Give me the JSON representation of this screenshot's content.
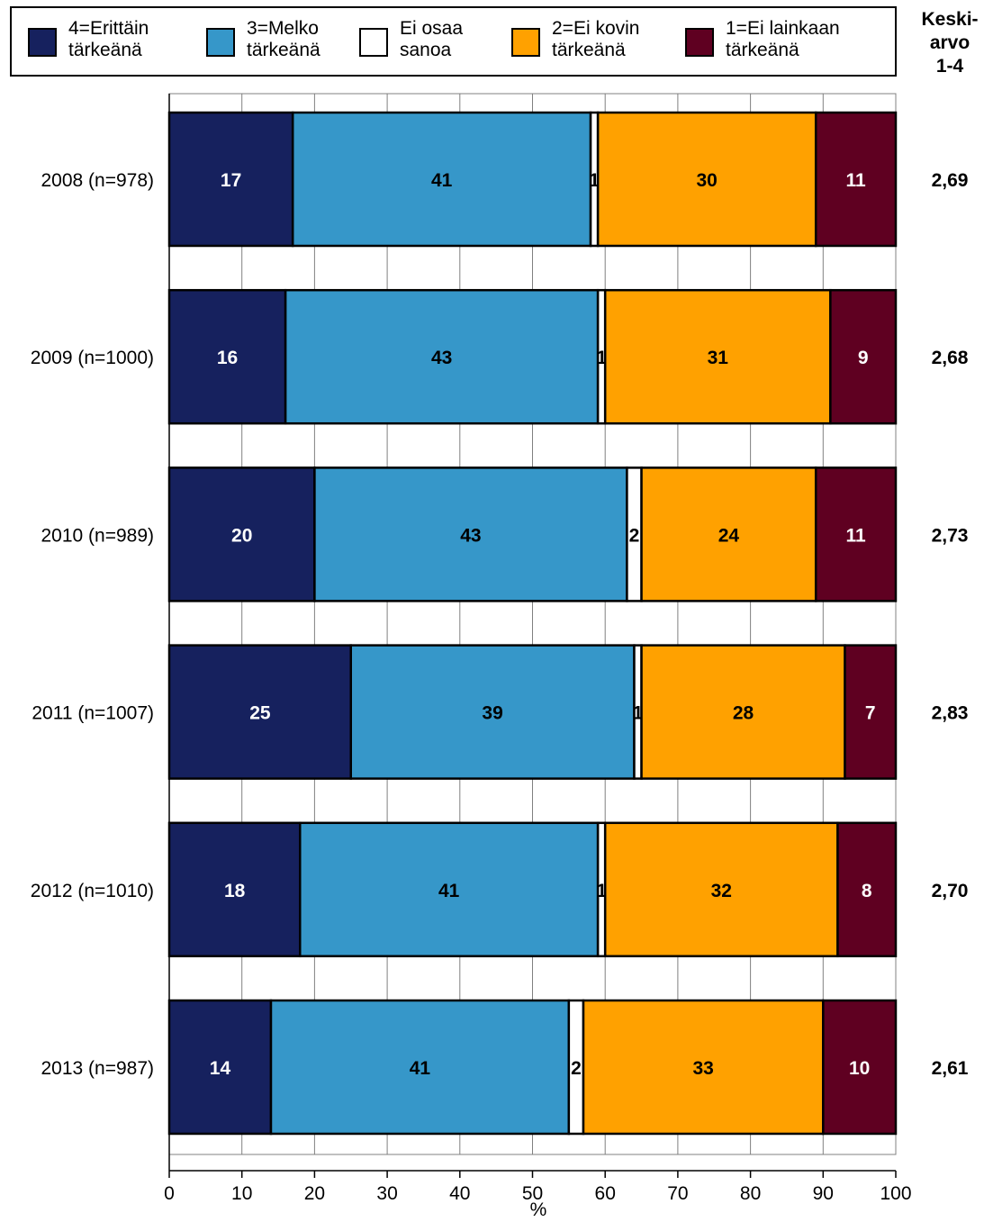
{
  "chart_data": {
    "type": "bar",
    "orientation": "horizontal",
    "stacked": true,
    "categories": [
      "2008 (n=978)",
      "2009 (n=1000)",
      "2010 (n=989)",
      "2011 (n=1007)",
      "2012 (n=1010)",
      "2013 (n=987)"
    ],
    "series": [
      {
        "name": "4=Erittäin tärkeänä",
        "name_lines": [
          "4=Erittäin",
          "tärkeänä"
        ],
        "color": "#16215e",
        "label_color": "#ffffff",
        "values": [
          17,
          16,
          20,
          25,
          18,
          14
        ]
      },
      {
        "name": "3=Melko tärkeänä",
        "name_lines": [
          "3=Melko",
          "tärkeänä"
        ],
        "color": "#3697c9",
        "label_color": "#000000",
        "values": [
          41,
          43,
          43,
          39,
          41,
          41
        ]
      },
      {
        "name": "Ei osaa sanoa",
        "name_lines": [
          "Ei osaa",
          "sanoa"
        ],
        "color": "#ffffff",
        "label_color": "#000000",
        "values": [
          1,
          1,
          2,
          1,
          1,
          2
        ]
      },
      {
        "name": "2=Ei kovin tärkeänä",
        "name_lines": [
          "2=Ei kovin",
          "tärkeänä"
        ],
        "color": "#ffa100",
        "label_color": "#000000",
        "values": [
          30,
          31,
          24,
          28,
          32,
          33
        ]
      },
      {
        "name": "1=Ei lainkaan tärkeänä",
        "name_lines": [
          "1=Ei lainkaan",
          "tärkeänä"
        ],
        "color": "#5f0021",
        "label_color": "#ffffff",
        "values": [
          11,
          9,
          11,
          7,
          8,
          10
        ]
      }
    ],
    "mean_header_lines": [
      "Keski-",
      "arvo",
      "1-4"
    ],
    "means": [
      "2,69",
      "2,68",
      "2,73",
      "2,83",
      "2,70",
      "2,61"
    ],
    "xlabel": "%",
    "xlim": [
      0,
      100
    ],
    "xticks": [
      0,
      10,
      20,
      30,
      40,
      50,
      60,
      70,
      80,
      90,
      100
    ],
    "grid": true,
    "legend_position": "top"
  }
}
